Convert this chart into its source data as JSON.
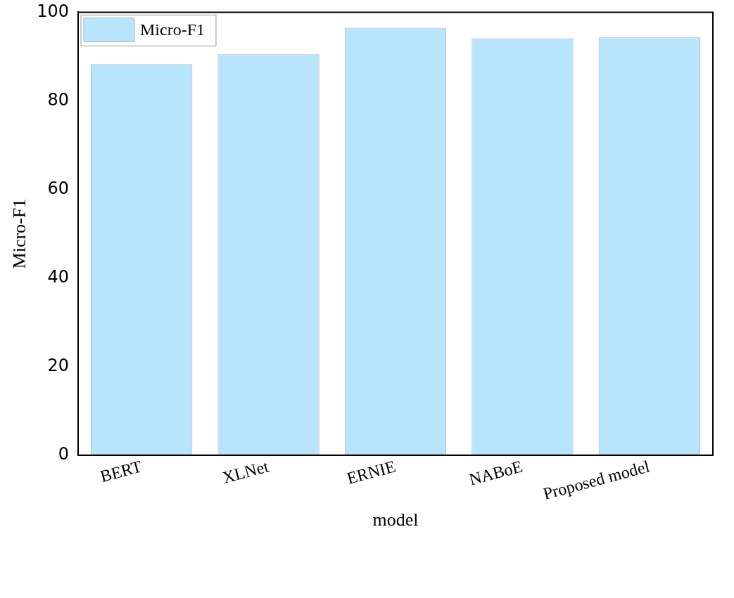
{
  "chart_data": {
    "type": "bar",
    "xlabel": "model",
    "ylabel": "Micro-F1",
    "categories": [
      "BERT",
      "XLNet",
      "ERNIE",
      "NABoE",
      "Proposed model"
    ],
    "series": [
      {
        "name": "Micro-F1",
        "color": "#b8e4fc",
        "values": [
          88.3,
          90.5,
          96.5,
          94.1,
          94.3
        ]
      }
    ],
    "ylim": [
      0,
      100
    ],
    "yticks": [
      0,
      20,
      40,
      60,
      80,
      100
    ],
    "grid": false,
    "legend": "top left"
  }
}
